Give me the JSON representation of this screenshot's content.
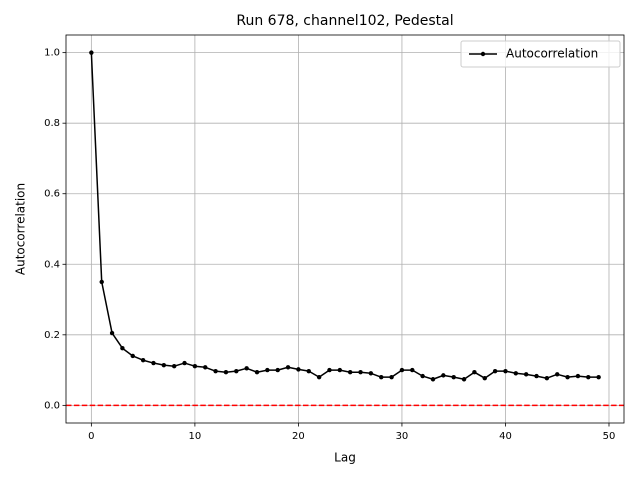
{
  "chart_data": {
    "type": "line",
    "title": "Run 678, channel102, Pedestal",
    "xlabel": "Lag",
    "ylabel": "Autocorrelation",
    "x": [
      0,
      1,
      2,
      3,
      4,
      5,
      6,
      7,
      8,
      9,
      10,
      11,
      12,
      13,
      14,
      15,
      16,
      17,
      18,
      19,
      20,
      21,
      22,
      23,
      24,
      25,
      26,
      27,
      28,
      29,
      30,
      31,
      32,
      33,
      34,
      35,
      36,
      37,
      38,
      39,
      40,
      41,
      42,
      43,
      44,
      45,
      46,
      47,
      48,
      49
    ],
    "series": [
      {
        "name": "Autocorrelation",
        "color": "#000000",
        "marker": "circle",
        "values": [
          1.0,
          0.35,
          0.205,
          0.162,
          0.14,
          0.128,
          0.12,
          0.114,
          0.111,
          0.12,
          0.111,
          0.108,
          0.097,
          0.094,
          0.097,
          0.105,
          0.094,
          0.1,
          0.1,
          0.108,
          0.102,
          0.097,
          0.08,
          0.1,
          0.1,
          0.094,
          0.094,
          0.091,
          0.08,
          0.08,
          0.1,
          0.1,
          0.083,
          0.074,
          0.085,
          0.08,
          0.074,
          0.094,
          0.077,
          0.097,
          0.097,
          0.091,
          0.088,
          0.083,
          0.077,
          0.088,
          0.08,
          0.083,
          0.08,
          0.08
        ]
      }
    ],
    "hline": {
      "value": 0,
      "color": "#ff0000",
      "style": "dashed"
    },
    "xlim": [
      -2.45,
      51.45
    ],
    "ylim": [
      -0.05,
      1.05
    ],
    "xticks": [
      0,
      10,
      20,
      30,
      40,
      50
    ],
    "yticks": [
      {
        "value": 0,
        "label": "0.0"
      },
      {
        "value": 0.2,
        "label": "0.2"
      },
      {
        "value": 0.4,
        "label": "0.4"
      },
      {
        "value": 0.6,
        "label": "0.6"
      },
      {
        "value": 0.8,
        "label": "0.8"
      },
      {
        "value": 1.0,
        "label": "1.0"
      }
    ],
    "grid": true,
    "legend": "upper right"
  }
}
